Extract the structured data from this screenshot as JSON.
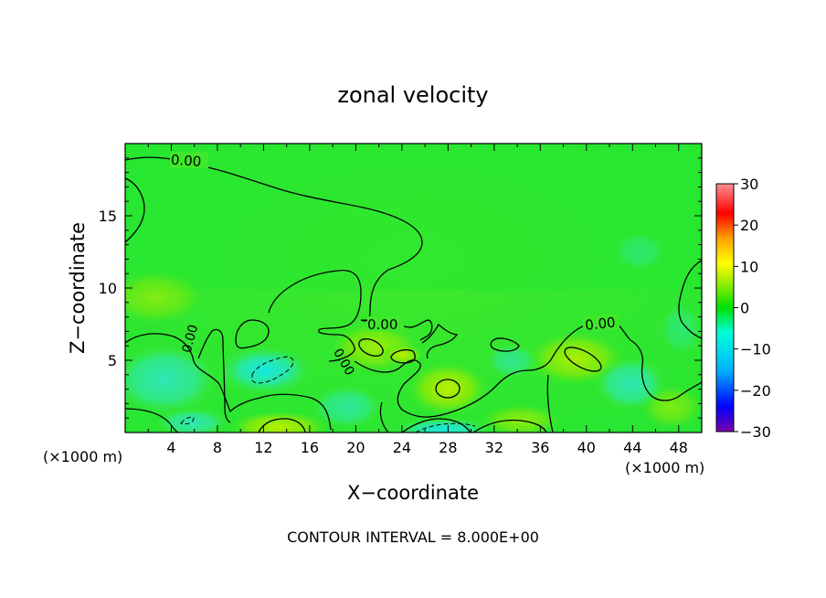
{
  "chart_data": {
    "type": "heatmap",
    "title": "zonal velocity",
    "xlabel": "X−coordinate",
    "ylabel": "Z−coordinate",
    "x_unit_left": "(×1000 m)",
    "x_unit_right": "(×1000 m)",
    "xlim": [
      0,
      50
    ],
    "ylim": [
      0,
      20
    ],
    "x_ticks": [
      4,
      8,
      12,
      16,
      20,
      24,
      28,
      32,
      36,
      40,
      44,
      48
    ],
    "y_ticks": [
      5,
      10,
      15
    ],
    "colorbar": {
      "min": -30,
      "max": 30,
      "ticks": [
        "30",
        "20",
        "10",
        "0",
        "−10",
        "−20",
        "−30"
      ],
      "tick_values": [
        30,
        20,
        10,
        0,
        -10,
        -20,
        -30
      ],
      "colors": [
        "#7a00a8",
        "#0000ff",
        "#00b4ff",
        "#00ffe0",
        "#00e000",
        "#b4f000",
        "#ffff00",
        "#ffa000",
        "#ff0000",
        "#ff8080"
      ]
    },
    "contour_labels": [
      "0.00",
      "0.00",
      "0.00",
      "0.00",
      "0.00",
      "0.00"
    ],
    "footer": "CONTOUR INTERVAL = 8.000E+00",
    "grid": false
  }
}
